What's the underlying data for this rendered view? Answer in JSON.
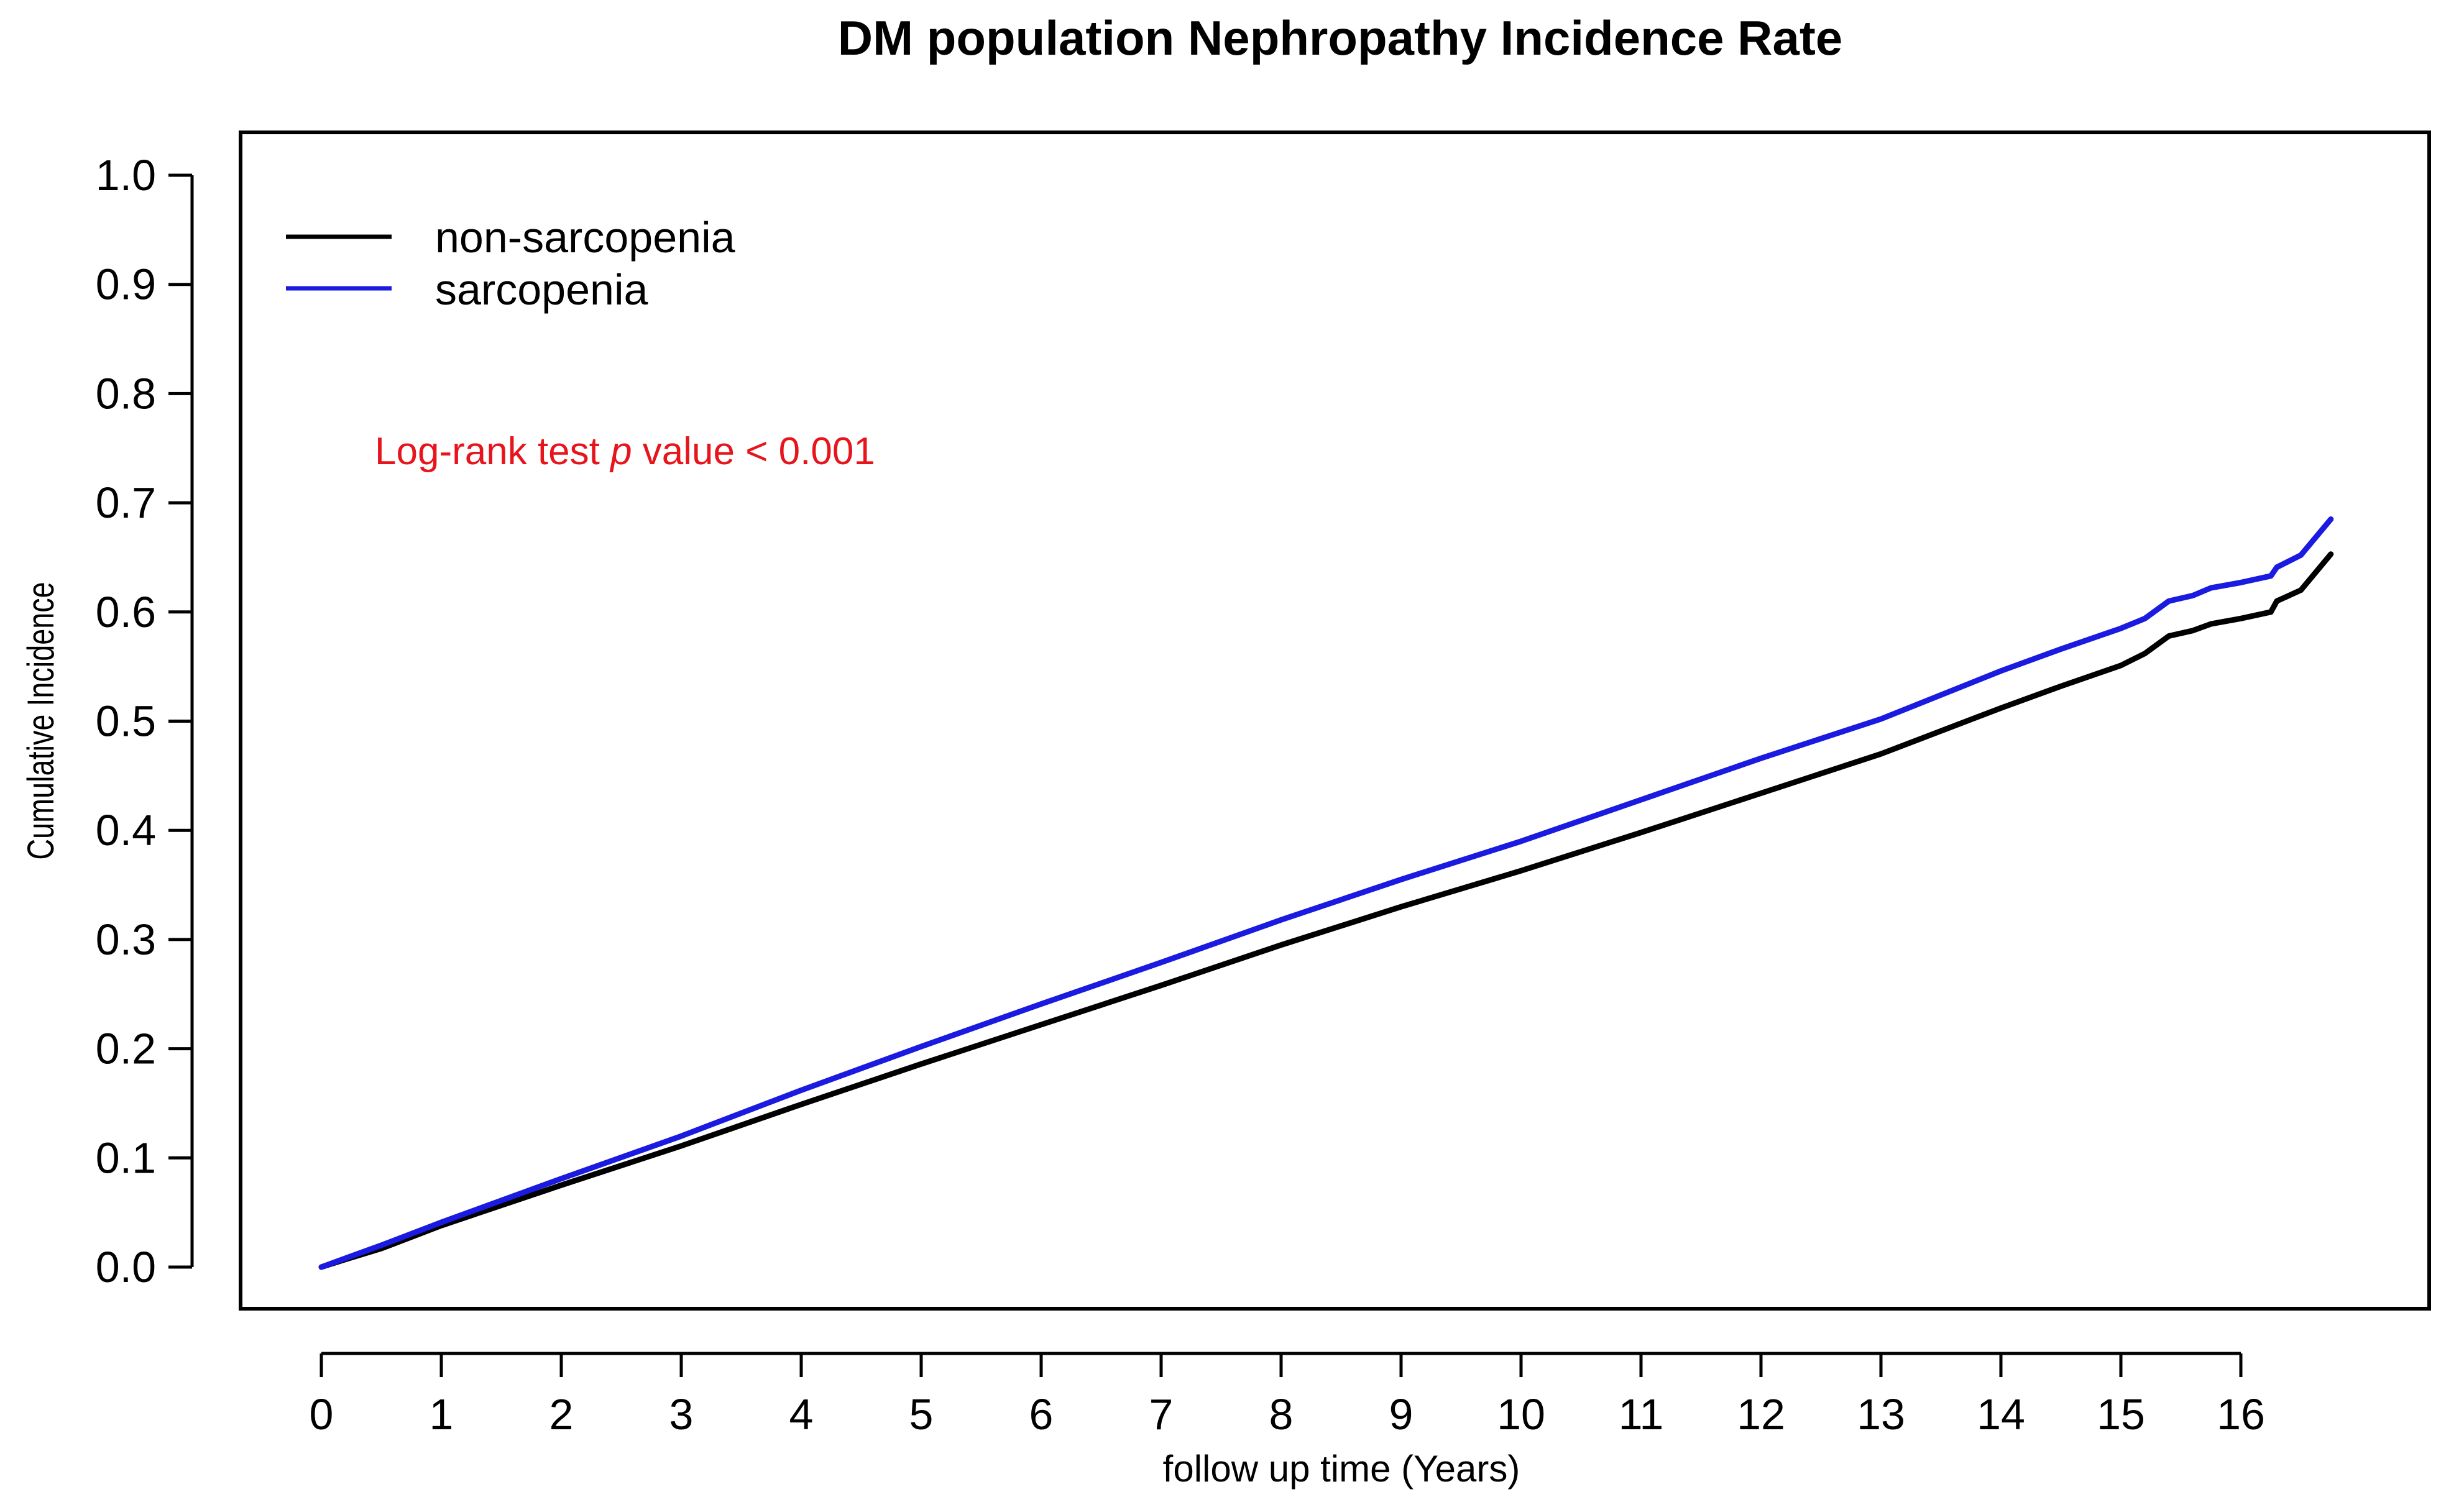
{
  "chart_data": {
    "type": "line",
    "title": "DM population Nephropathy Incidence Rate",
    "xlabel": "follow up time (Years)",
    "ylabel": "Cumulative Incidence",
    "xlim": [
      0,
      17.5
    ],
    "ylim": [
      0,
      1.0
    ],
    "x_ticks": [
      "0",
      "1",
      "2",
      "3",
      "4",
      "5",
      "6",
      "7",
      "8",
      "9",
      "10",
      "11",
      "12",
      "13",
      "14",
      "15",
      "16"
    ],
    "y_ticks": [
      "0.0",
      "0.1",
      "0.2",
      "0.3",
      "0.4",
      "0.5",
      "0.6",
      "0.7",
      "0.8",
      "0.9",
      "1.0"
    ],
    "legend_position": "top-left",
    "annotation": {
      "prefix": "Log-rank test ",
      "italic": "p",
      "suffix": " value < 0.001",
      "color": "#e8141b"
    },
    "series": [
      {
        "name": "non-sarcopenia",
        "color": "#000000",
        "points": [
          [
            0,
            0.0
          ],
          [
            0.2,
            0.007
          ],
          [
            0.5,
            0.017
          ],
          [
            1,
            0.038
          ],
          [
            2,
            0.075
          ],
          [
            3,
            0.111
          ],
          [
            4,
            0.149
          ],
          [
            5,
            0.186
          ],
          [
            6,
            0.222
          ],
          [
            7,
            0.258
          ],
          [
            8,
            0.295
          ],
          [
            9,
            0.33
          ],
          [
            10,
            0.363
          ],
          [
            11,
            0.398
          ],
          [
            12,
            0.434
          ],
          [
            13,
            0.47
          ],
          [
            14,
            0.512
          ],
          [
            14.5,
            0.532
          ],
          [
            15,
            0.551
          ],
          [
            15.2,
            0.562
          ],
          [
            15.4,
            0.578
          ],
          [
            15.6,
            0.583
          ],
          [
            15.75,
            0.589
          ],
          [
            16.0,
            0.594
          ],
          [
            16.25,
            0.6
          ],
          [
            16.3,
            0.61
          ],
          [
            16.5,
            0.62
          ],
          [
            16.75,
            0.653
          ]
        ]
      },
      {
        "name": "sarcopenia",
        "color": "#1a1ae0",
        "points": [
          [
            0,
            0.0
          ],
          [
            0.2,
            0.008
          ],
          [
            0.5,
            0.02
          ],
          [
            1,
            0.041
          ],
          [
            2,
            0.081
          ],
          [
            3,
            0.12
          ],
          [
            4,
            0.162
          ],
          [
            5,
            0.202
          ],
          [
            6,
            0.241
          ],
          [
            7,
            0.279
          ],
          [
            8,
            0.318
          ],
          [
            9,
            0.355
          ],
          [
            10,
            0.39
          ],
          [
            11,
            0.428
          ],
          [
            12,
            0.466
          ],
          [
            13,
            0.502
          ],
          [
            14,
            0.546
          ],
          [
            14.5,
            0.566
          ],
          [
            15,
            0.585
          ],
          [
            15.2,
            0.594
          ],
          [
            15.4,
            0.61
          ],
          [
            15.6,
            0.615
          ],
          [
            15.75,
            0.622
          ],
          [
            16.0,
            0.627
          ],
          [
            16.25,
            0.633
          ],
          [
            16.3,
            0.641
          ],
          [
            16.5,
            0.652
          ],
          [
            16.75,
            0.685
          ]
        ]
      }
    ]
  }
}
